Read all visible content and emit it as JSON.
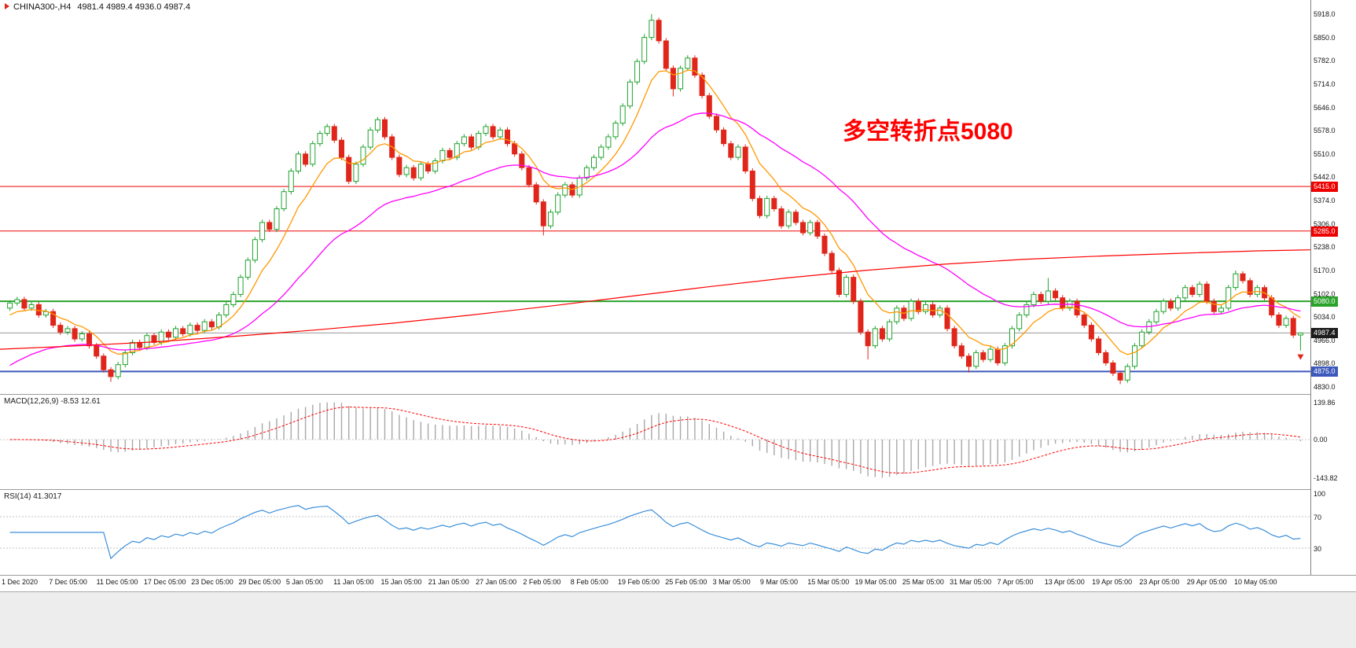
{
  "header": {
    "symbol": "CHINA300-,H4",
    "ohlc": "4981.4 4989.4 4936.0 4987.4"
  },
  "annotation": {
    "text": "多空转折点5080",
    "color": "#ff0000"
  },
  "chart_data": {
    "type": "candlestick",
    "symbol": "CHINA300-",
    "timeframe": "H4",
    "title": "CHINA300-,H4",
    "current_price": {
      "value": 4987.4,
      "label": "4987.4",
      "line_color": "#9a9a9a",
      "badge_bg": "#1c1c1c"
    },
    "current_bar": {
      "open": 4981.4,
      "high": 4989.4,
      "low": 4936.0,
      "close": 4987.4
    },
    "colors": {
      "up_fill": "#ffffff",
      "up_stroke": "#1fa32e",
      "down": "#e0261a"
    },
    "y_axis": {
      "ticks": [
        5918.0,
        5850.0,
        5782.0,
        5714.0,
        5646.0,
        5578.0,
        5510.0,
        5442.0,
        5374.0,
        5306.0,
        5238.0,
        5170.0,
        5102.0,
        5034.0,
        4966.0,
        4898.0,
        4830.0
      ]
    },
    "x_axis": {
      "labels": [
        "1 Dec 2020",
        "7 Dec 05:00",
        "11 Dec 05:00",
        "17 Dec 05:00",
        "23 Dec 05:00",
        "29 Dec 05:00",
        "5 Jan 05:00",
        "11 Jan 05:00",
        "15 Jan 05:00",
        "21 Jan 05:00",
        "27 Jan 05:00",
        "2 Feb 05:00",
        "8 Feb 05:00",
        "19 Feb 05:00",
        "25 Feb 05:00",
        "3 Mar 05:00",
        "9 Mar 05:00",
        "15 Mar 05:00",
        "19 Mar 05:00",
        "25 Mar 05:00",
        "31 Mar 05:00",
        "7 Apr 05:00",
        "13 Apr 05:00",
        "19 Apr 05:00",
        "23 Apr 05:00",
        "29 Apr 05:00",
        "10 May 05:00"
      ]
    },
    "h_lines": [
      {
        "price": 5415.0,
        "label": "5415.0",
        "color": "#ee0000",
        "width": 1
      },
      {
        "price": 5285.0,
        "label": "5285.0",
        "color": "#ee0000",
        "width": 1
      },
      {
        "price": 5080.0,
        "label": "5080.0",
        "color": "#2ba32b",
        "width": 2
      },
      {
        "price": 4875.0,
        "label": "4875.0",
        "color": "#3c58bb",
        "width": 2
      }
    ],
    "moving_averages": [
      {
        "name": "ma-fast",
        "period": 8,
        "init": 5030,
        "color": "#ff9800",
        "width": 1.3
      },
      {
        "name": "ma-medium",
        "period": 30,
        "init": 4880,
        "color": "#ff00ff",
        "width": 1.3
      }
    ],
    "long_ma": {
      "name": "ma-slow",
      "color": "#ff0000",
      "points": [
        [
          0,
          4940
        ],
        [
          0.06,
          4950
        ],
        [
          0.12,
          4962
        ],
        [
          0.18,
          4978
        ],
        [
          0.24,
          4996
        ],
        [
          0.3,
          5016
        ],
        [
          0.36,
          5040
        ],
        [
          0.42,
          5066
        ],
        [
          0.48,
          5094
        ],
        [
          0.54,
          5122
        ],
        [
          0.6,
          5148
        ],
        [
          0.66,
          5170
        ],
        [
          0.72,
          5188
        ],
        [
          0.78,
          5202
        ],
        [
          0.84,
          5212
        ],
        [
          0.9,
          5220
        ],
        [
          0.96,
          5227
        ],
        [
          1,
          5230
        ]
      ]
    },
    "candles": [
      [
        5060,
        5083,
        5052,
        5075
      ],
      [
        5075,
        5093,
        5067,
        5085
      ],
      [
        5085,
        5093,
        5052,
        5060
      ],
      [
        5060,
        5078,
        5052,
        5070
      ],
      [
        5070,
        5078,
        5032,
        5040
      ],
      [
        5040,
        5058,
        5032,
        5050
      ],
      [
        5050,
        5058,
        5002,
        5010
      ],
      [
        5010,
        5018,
        4982,
        4990
      ],
      [
        4990,
        5008,
        4982,
        5000
      ],
      [
        5000,
        5008,
        4962,
        4970
      ],
      [
        4970,
        4993,
        4962,
        4985
      ],
      [
        4985,
        4993,
        4942,
        4950
      ],
      [
        4950,
        4958,
        4912,
        4920
      ],
      [
        4920,
        4928,
        4872,
        4880
      ],
      [
        4880,
        4888,
        4845,
        4860
      ],
      [
        4860,
        4903,
        4852,
        4895
      ],
      [
        4895,
        4938,
        4887,
        4930
      ],
      [
        4930,
        4968,
        4922,
        4960
      ],
      [
        4960,
        4968,
        4937,
        4945
      ],
      [
        4945,
        4988,
        4937,
        4980
      ],
      [
        4980,
        4988,
        4952,
        4960
      ],
      [
        4960,
        4998,
        4952,
        4990
      ],
      [
        4990,
        4998,
        4967,
        4975
      ],
      [
        4975,
        5008,
        4967,
        5000
      ],
      [
        5000,
        5008,
        4977,
        4985
      ],
      [
        4985,
        5018,
        4977,
        5010
      ],
      [
        5010,
        5018,
        4987,
        4995
      ],
      [
        4995,
        5028,
        4987,
        5020
      ],
      [
        5020,
        5028,
        4997,
        5005
      ],
      [
        5005,
        5048,
        4997,
        5040
      ],
      [
        5040,
        5078,
        5032,
        5070
      ],
      [
        5070,
        5108,
        5062,
        5100
      ],
      [
        5100,
        5158,
        5092,
        5150
      ],
      [
        5150,
        5208,
        5142,
        5200
      ],
      [
        5200,
        5268,
        5192,
        5260
      ],
      [
        5260,
        5318,
        5252,
        5310
      ],
      [
        5310,
        5318,
        5282,
        5290
      ],
      [
        5290,
        5358,
        5282,
        5350
      ],
      [
        5350,
        5408,
        5342,
        5400
      ],
      [
        5400,
        5468,
        5392,
        5460
      ],
      [
        5460,
        5518,
        5452,
        5510
      ],
      [
        5510,
        5518,
        5472,
        5480
      ],
      [
        5480,
        5548,
        5472,
        5540
      ],
      [
        5540,
        5578,
        5532,
        5570
      ],
      [
        5570,
        5598,
        5562,
        5590
      ],
      [
        5590,
        5598,
        5542,
        5550
      ],
      [
        5550,
        5558,
        5492,
        5500
      ],
      [
        5500,
        5508,
        5422,
        5430
      ],
      [
        5430,
        5488,
        5422,
        5480
      ],
      [
        5480,
        5538,
        5472,
        5530
      ],
      [
        5530,
        5588,
        5522,
        5580
      ],
      [
        5580,
        5618,
        5572,
        5610
      ],
      [
        5610,
        5618,
        5552,
        5560
      ],
      [
        5560,
        5568,
        5492,
        5500
      ],
      [
        5500,
        5508,
        5442,
        5450
      ],
      [
        5450,
        5478,
        5442,
        5470
      ],
      [
        5470,
        5478,
        5432,
        5440
      ],
      [
        5440,
        5488,
        5432,
        5480
      ],
      [
        5480,
        5488,
        5452,
        5460
      ],
      [
        5460,
        5498,
        5452,
        5490
      ],
      [
        5490,
        5528,
        5482,
        5520
      ],
      [
        5520,
        5528,
        5492,
        5500
      ],
      [
        5500,
        5548,
        5492,
        5540
      ],
      [
        5540,
        5568,
        5532,
        5560
      ],
      [
        5560,
        5568,
        5522,
        5530
      ],
      [
        5530,
        5578,
        5522,
        5570
      ],
      [
        5570,
        5598,
        5562,
        5590
      ],
      [
        5590,
        5598,
        5552,
        5560
      ],
      [
        5560,
        5588,
        5552,
        5580
      ],
      [
        5580,
        5588,
        5532,
        5540
      ],
      [
        5540,
        5548,
        5502,
        5510
      ],
      [
        5510,
        5518,
        5462,
        5470
      ],
      [
        5470,
        5478,
        5412,
        5420
      ],
      [
        5420,
        5428,
        5362,
        5370
      ],
      [
        5370,
        5378,
        5272,
        5300
      ],
      [
        5300,
        5348,
        5292,
        5340
      ],
      [
        5340,
        5398,
        5332,
        5390
      ],
      [
        5390,
        5428,
        5382,
        5420
      ],
      [
        5420,
        5428,
        5382,
        5390
      ],
      [
        5390,
        5448,
        5382,
        5440
      ],
      [
        5440,
        5478,
        5432,
        5470
      ],
      [
        5470,
        5508,
        5462,
        5500
      ],
      [
        5500,
        5538,
        5492,
        5530
      ],
      [
        5530,
        5568,
        5522,
        5560
      ],
      [
        5560,
        5608,
        5552,
        5600
      ],
      [
        5600,
        5658,
        5592,
        5650
      ],
      [
        5650,
        5728,
        5642,
        5720
      ],
      [
        5720,
        5788,
        5712,
        5780
      ],
      [
        5780,
        5860,
        5772,
        5850
      ],
      [
        5850,
        5918,
        5842,
        5900
      ],
      [
        5900,
        5908,
        5832,
        5840
      ],
      [
        5840,
        5848,
        5752,
        5760
      ],
      [
        5760,
        5768,
        5678,
        5700
      ],
      [
        5700,
        5768,
        5692,
        5760
      ],
      [
        5760,
        5798,
        5752,
        5790
      ],
      [
        5790,
        5798,
        5732,
        5740
      ],
      [
        5740,
        5748,
        5672,
        5680
      ],
      [
        5680,
        5688,
        5612,
        5620
      ],
      [
        5620,
        5628,
        5572,
        5580
      ],
      [
        5580,
        5588,
        5532,
        5540
      ],
      [
        5540,
        5548,
        5492,
        5500
      ],
      [
        5500,
        5538,
        5492,
        5530
      ],
      [
        5530,
        5538,
        5452,
        5460
      ],
      [
        5460,
        5468,
        5372,
        5380
      ],
      [
        5380,
        5388,
        5322,
        5330
      ],
      [
        5330,
        5388,
        5322,
        5380
      ],
      [
        5380,
        5388,
        5342,
        5350
      ],
      [
        5350,
        5358,
        5292,
        5300
      ],
      [
        5300,
        5348,
        5292,
        5340
      ],
      [
        5340,
        5348,
        5302,
        5310
      ],
      [
        5310,
        5318,
        5272,
        5280
      ],
      [
        5280,
        5318,
        5272,
        5310
      ],
      [
        5310,
        5318,
        5262,
        5270
      ],
      [
        5270,
        5278,
        5212,
        5220
      ],
      [
        5220,
        5228,
        5162,
        5170
      ],
      [
        5170,
        5178,
        5092,
        5100
      ],
      [
        5100,
        5158,
        5092,
        5150
      ],
      [
        5150,
        5158,
        5072,
        5080
      ],
      [
        5080,
        5088,
        4982,
        4990
      ],
      [
        4990,
        4998,
        4910,
        4950
      ],
      [
        4950,
        5008,
        4942,
        5000
      ],
      [
        5000,
        5008,
        4962,
        4970
      ],
      [
        4970,
        5028,
        4962,
        5020
      ],
      [
        5020,
        5068,
        5012,
        5060
      ],
      [
        5060,
        5068,
        5022,
        5030
      ],
      [
        5030,
        5088,
        5022,
        5080
      ],
      [
        5080,
        5088,
        5042,
        5050
      ],
      [
        5050,
        5078,
        5042,
        5070
      ],
      [
        5070,
        5078,
        5032,
        5040
      ],
      [
        5040,
        5068,
        5032,
        5060
      ],
      [
        5060,
        5068,
        4992,
        5000
      ],
      [
        5000,
        5008,
        4942,
        4950
      ],
      [
        4950,
        4958,
        4912,
        4920
      ],
      [
        4920,
        4928,
        4872,
        4890
      ],
      [
        4890,
        4938,
        4882,
        4930
      ],
      [
        4930,
        4938,
        4902,
        4910
      ],
      [
        4910,
        4948,
        4902,
        4940
      ],
      [
        4940,
        4948,
        4892,
        4900
      ],
      [
        4900,
        4958,
        4892,
        4950
      ],
      [
        4950,
        5008,
        4942,
        5000
      ],
      [
        5000,
        5048,
        4992,
        5040
      ],
      [
        5040,
        5078,
        5032,
        5070
      ],
      [
        5070,
        5108,
        5062,
        5100
      ],
      [
        5100,
        5108,
        5072,
        5080
      ],
      [
        5080,
        5148,
        5072,
        5110
      ],
      [
        5110,
        5118,
        5082,
        5090
      ],
      [
        5090,
        5098,
        5052,
        5060
      ],
      [
        5060,
        5088,
        5052,
        5080
      ],
      [
        5080,
        5088,
        5032,
        5040
      ],
      [
        5040,
        5048,
        5002,
        5010
      ],
      [
        5010,
        5018,
        4962,
        4970
      ],
      [
        4970,
        4978,
        4922,
        4930
      ],
      [
        4930,
        4938,
        4892,
        4900
      ],
      [
        4900,
        4908,
        4862,
        4870
      ],
      [
        4870,
        4878,
        4838,
        4850
      ],
      [
        4850,
        4898,
        4842,
        4890
      ],
      [
        4890,
        4958,
        4882,
        4950
      ],
      [
        4950,
        4998,
        4942,
        4990
      ],
      [
        4990,
        5028,
        4982,
        5020
      ],
      [
        5020,
        5058,
        5012,
        5050
      ],
      [
        5050,
        5088,
        5042,
        5080
      ],
      [
        5080,
        5088,
        5052,
        5060
      ],
      [
        5060,
        5098,
        5052,
        5090
      ],
      [
        5090,
        5128,
        5082,
        5120
      ],
      [
        5120,
        5128,
        5092,
        5100
      ],
      [
        5100,
        5138,
        5092,
        5130
      ],
      [
        5130,
        5138,
        5072,
        5080
      ],
      [
        5080,
        5088,
        5042,
        5050
      ],
      [
        5050,
        5068,
        5042,
        5060
      ],
      [
        5060,
        5128,
        5052,
        5120
      ],
      [
        5120,
        5170,
        5112,
        5160
      ],
      [
        5160,
        5168,
        5132,
        5140
      ],
      [
        5140,
        5148,
        5092,
        5100
      ],
      [
        5100,
        5128,
        5092,
        5120
      ],
      [
        5120,
        5128,
        5082,
        5090
      ],
      [
        5090,
        5098,
        5032,
        5040
      ],
      [
        5040,
        5048,
        5002,
        5010
      ],
      [
        5010,
        5038,
        5002,
        5030
      ],
      [
        5030,
        5038,
        4973,
        4981.4
      ],
      [
        4981.4,
        4989.4,
        4936,
        4987.4
      ]
    ],
    "indicators": [
      {
        "name": "MACD",
        "title": "MACD(12,26,9) -8.53 12.61",
        "params": [
          12,
          26,
          9
        ],
        "values": {
          "main": -8.53,
          "signal": 12.61
        },
        "axis": [
          139.86,
          0.0,
          -143.82
        ],
        "colors": {
          "hist": "#a8a8a8",
          "signal": "#ff0000"
        }
      },
      {
        "name": "RSI",
        "title": "RSI(14) 41.3017",
        "period": 14,
        "value": 41.3017,
        "axis": [
          100,
          70,
          30
        ],
        "levels": [
          70,
          30
        ],
        "color": "#3b8fd9"
      }
    ]
  }
}
